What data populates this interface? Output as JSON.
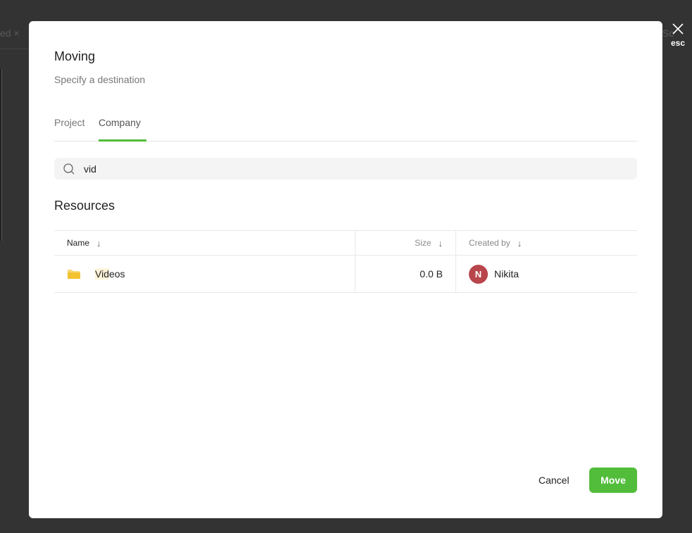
{
  "background": {
    "fragment_left": "ed ×",
    "fragment_right": "Sc"
  },
  "close": {
    "label": "esc",
    "icon": "close-icon"
  },
  "modal": {
    "title": "Moving",
    "subtitle": "Specify a destination",
    "tabs": [
      {
        "label": "Project",
        "active": false
      },
      {
        "label": "Company",
        "active": true
      }
    ],
    "search": {
      "value": "vid",
      "placeholder": "",
      "icon": "search-icon"
    },
    "section_title": "Resources",
    "table": {
      "columns": [
        {
          "label": "Name",
          "sort": "↓"
        },
        {
          "label": "Size",
          "sort": "↓"
        },
        {
          "label": "Created by",
          "sort": "↓"
        }
      ],
      "rows": [
        {
          "name_highlight": "Vid",
          "name_rest": "eos",
          "icon": "folder-icon",
          "size": "0.0 B",
          "creator_initial": "N",
          "creator": "Nikita"
        }
      ]
    },
    "cancel_label": "Cancel",
    "move_label": "Move"
  },
  "colors": {
    "accent": "#52bd3a",
    "avatar": "#b8454b",
    "folder": "#f2c230",
    "overlay": "#333333"
  }
}
